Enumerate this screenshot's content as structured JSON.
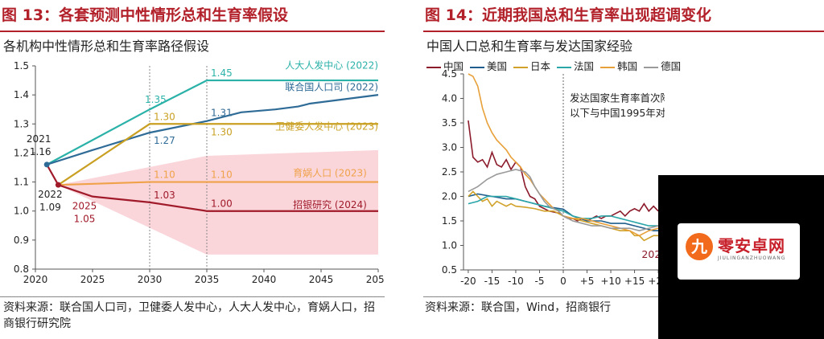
{
  "left": {
    "figure_title": "图 13：各套预测中性情形总和生育率假设",
    "subtitle": "各机构中性情形总和生育率路径假设",
    "source": "资料来源：联合国人口司，卫健委人发中心，人大人发中心，育娲人口，招商银行研究院"
  },
  "right": {
    "figure_title": "图 14：近期我国总和生育率出现超调变化",
    "subtitle": "中国人口总和生育率与发达国家经验",
    "source": "资料来源：联合国，Wind，招商银行",
    "annotation_line1": "发达国家生育率首次降至1.6",
    "annotation_line2": "以下与中国1995年对齐",
    "clipped_label": "202"
  },
  "watermark": {
    "badge": "九",
    "text": "零安卓网",
    "sub": "JIULINGANZHUOWANG"
  },
  "colors": {
    "title_red": "#b2202a",
    "china": "#8b1a2b",
    "usa": "#1f5e8c",
    "japan": "#d1a22a",
    "france": "#2aa5a8",
    "korea": "#e8a03a",
    "germany": "#9a9a9a",
    "renda": "#2ab1a8",
    "un": "#2f6b97",
    "weijian": "#c9a023",
    "yuwa": "#f0a24a",
    "cmb": "#a01a2a",
    "band": "#f8c8cf"
  },
  "chart_data": [
    {
      "type": "line",
      "title": "各机构中性情形总和生育率路径假设",
      "xlabel": "",
      "ylabel": "",
      "xlim": [
        2020,
        2050
      ],
      "ylim": [
        0.8,
        1.5
      ],
      "x_ticks": [
        "2020",
        "2025",
        "2030",
        "2035",
        "2040",
        "2045",
        "2050"
      ],
      "y_ticks": [
        "0.8",
        "0.9",
        "1.0",
        "1.1",
        "1.2",
        "1.3",
        "1.4",
        "1.5"
      ],
      "vlines": [
        2030,
        2035
      ],
      "band": {
        "x": [
          2022,
          2035,
          2050
        ],
        "upper": [
          1.09,
          1.19,
          1.21
        ],
        "lower": [
          1.09,
          0.85,
          0.85
        ]
      },
      "series": [
        {
          "name": "人大人发中心 (2022)",
          "color_key": "renda",
          "points": [
            [
              2021,
              1.16
            ],
            [
              2030,
              1.35
            ],
            [
              2035,
              1.45
            ],
            [
              2050,
              1.45
            ]
          ]
        },
        {
          "name": "联合国人口司 (2022)",
          "color_key": "un",
          "points": [
            [
              2021,
              1.16
            ],
            [
              2025,
              1.21
            ],
            [
              2030,
              1.27
            ],
            [
              2035,
              1.31
            ],
            [
              2038,
              1.34
            ],
            [
              2041,
              1.35
            ],
            [
              2043,
              1.36
            ],
            [
              2044,
              1.37
            ],
            [
              2046,
              1.38
            ],
            [
              2048,
              1.39
            ],
            [
              2050,
              1.4
            ]
          ]
        },
        {
          "name": "卫健委人发中心 (2023)",
          "color_key": "weijian",
          "points": [
            [
              2022,
              1.09
            ],
            [
              2030,
              1.3
            ],
            [
              2035,
              1.3
            ],
            [
              2050,
              1.3
            ]
          ]
        },
        {
          "name": "育娲人口 (2023)",
          "color_key": "yuwa",
          "points": [
            [
              2022,
              1.09
            ],
            [
              2030,
              1.1
            ],
            [
              2035,
              1.1
            ],
            [
              2050,
              1.1
            ]
          ]
        },
        {
          "name": "招银研究 (2024)",
          "color_key": "cmb",
          "points": [
            [
              2021,
              1.16
            ],
            [
              2022,
              1.09
            ],
            [
              2025,
              1.05
            ],
            [
              2030,
              1.03
            ],
            [
              2035,
              1.0
            ],
            [
              2050,
              1.0
            ]
          ]
        }
      ],
      "labels": [
        {
          "text": "2021",
          "x": 2021,
          "y": 1.16,
          "pos": "above2"
        },
        {
          "text": "1.16",
          "x": 2021,
          "y": 1.16,
          "pos": "above1"
        },
        {
          "text": "2022",
          "x": 2022,
          "y": 1.09,
          "pos": "below1"
        },
        {
          "text": "1.09",
          "x": 2022,
          "y": 1.09,
          "pos": "below2"
        },
        {
          "text": "2025",
          "x": 2025,
          "y": 1.05,
          "pos": "below1",
          "color_key": "cmb"
        },
        {
          "text": "1.05",
          "x": 2025,
          "y": 1.05,
          "pos": "below2",
          "color_key": "cmb"
        },
        {
          "text": "1.35",
          "x": 2030,
          "y": 1.35,
          "pos": "leftabove",
          "color_key": "renda"
        },
        {
          "text": "1.30",
          "x": 2030,
          "y": 1.3,
          "pos": "right",
          "color_key": "weijian"
        },
        {
          "text": "1.27",
          "x": 2030,
          "y": 1.27,
          "pos": "rightbelow",
          "color_key": "un"
        },
        {
          "text": "1.10",
          "x": 2030,
          "y": 1.1,
          "pos": "right",
          "color_key": "yuwa"
        },
        {
          "text": "1.03",
          "x": 2030,
          "y": 1.03,
          "pos": "right",
          "color_key": "cmb"
        },
        {
          "text": "1.45",
          "x": 2035,
          "y": 1.45,
          "pos": "right",
          "color_key": "renda"
        },
        {
          "text": "1.31",
          "x": 2035,
          "y": 1.31,
          "pos": "rightabove",
          "color_key": "un"
        },
        {
          "text": "1.30",
          "x": 2035,
          "y": 1.3,
          "pos": "rightbelow",
          "color_key": "weijian"
        },
        {
          "text": "1.10",
          "x": 2035,
          "y": 1.1,
          "pos": "right",
          "color_key": "yuwa"
        },
        {
          "text": "1.00",
          "x": 2035,
          "y": 1.0,
          "pos": "right",
          "color_key": "cmb"
        }
      ],
      "series_labels": [
        {
          "text": "人大人发中心 (2022)",
          "x": 2050,
          "y": 1.49,
          "color_key": "renda"
        },
        {
          "text": "联合国人口司 (2022)",
          "x": 2050,
          "y": 1.415,
          "color_key": "un"
        },
        {
          "text": "卫健委人发中心 (2023)",
          "x": 2050,
          "y": 1.28,
          "color_key": "weijian"
        },
        {
          "text": "育娲人口 (2023)",
          "x": 2049,
          "y": 1.12,
          "color_key": "yuwa"
        },
        {
          "text": "招银研究 (2024)",
          "x": 2049,
          "y": 1.01,
          "color_key": "cmb"
        }
      ]
    },
    {
      "type": "line",
      "title": "中国人口总和生育率与发达国家经验",
      "xlabel": "",
      "ylabel": "",
      "xlim": [
        -21,
        21
      ],
      "ylim": [
        0.5,
        4.5
      ],
      "x_ticks": [
        "-20",
        "-15",
        "-10",
        "-5",
        "0",
        "+5",
        "+10",
        "+15",
        "+20"
      ],
      "y_ticks": [
        "0.5",
        "1.0",
        "1.5",
        "2.0",
        "2.5",
        "3.0",
        "3.5",
        "4.0",
        "4.5"
      ],
      "vline": 0,
      "legend": [
        "中国",
        "美国",
        "日本",
        "法国",
        "韩国",
        "德国"
      ],
      "series": [
        {
          "name": "中国",
          "color_key": "china",
          "points": [
            [
              -20,
              3.55
            ],
            [
              -19,
              2.8
            ],
            [
              -18,
              2.7
            ],
            [
              -17,
              2.75
            ],
            [
              -16,
              2.6
            ],
            [
              -15,
              2.9
            ],
            [
              -14,
              2.65
            ],
            [
              -13,
              2.6
            ],
            [
              -12,
              2.75
            ],
            [
              -11,
              2.55
            ],
            [
              -10,
              2.7
            ],
            [
              -9,
              2.6
            ],
            [
              -8,
              2.2
            ],
            [
              -7,
              2.0
            ],
            [
              -6,
              1.95
            ],
            [
              -5,
              1.8
            ],
            [
              -4,
              1.75
            ],
            [
              -3,
              1.7
            ],
            [
              -2,
              1.68
            ],
            [
              -1,
              1.66
            ],
            [
              0,
              1.6
            ],
            [
              1,
              1.55
            ],
            [
              2,
              1.55
            ],
            [
              3,
              1.5
            ],
            [
              4,
              1.55
            ],
            [
              5,
              1.5
            ],
            [
              6,
              1.55
            ],
            [
              7,
              1.6
            ],
            [
              8,
              1.55
            ],
            [
              9,
              1.6
            ],
            [
              10,
              1.6
            ],
            [
              11,
              1.65
            ],
            [
              12,
              1.7
            ],
            [
              13,
              1.6
            ],
            [
              14,
              1.7
            ],
            [
              15,
              1.75
            ],
            [
              16,
              1.7
            ],
            [
              17,
              1.85
            ],
            [
              18,
              1.7
            ],
            [
              19,
              1.8
            ],
            [
              20,
              1.7
            ]
          ]
        },
        {
          "name": "美国",
          "color_key": "usa",
          "points": [
            [
              -20,
              2.0
            ],
            [
              -18,
              2.05
            ],
            [
              -15,
              2.0
            ],
            [
              -12,
              1.95
            ],
            [
              -10,
              1.95
            ],
            [
              -8,
              1.9
            ],
            [
              -6,
              1.85
            ],
            [
              -4,
              1.8
            ],
            [
              -2,
              1.77
            ],
            [
              0,
              1.74
            ],
            [
              2,
              1.6
            ],
            [
              5,
              1.5
            ],
            [
              8,
              1.5
            ],
            [
              10,
              1.45
            ],
            [
              13,
              1.45
            ],
            [
              15,
              1.4
            ],
            [
              17,
              1.35
            ],
            [
              19,
              1.3
            ],
            [
              20,
              1.3
            ]
          ]
        },
        {
          "name": "日本",
          "color_key": "japan",
          "points": [
            [
              -20,
              2.0
            ],
            [
              -19,
              2.1
            ],
            [
              -18,
              2.0
            ],
            [
              -17,
              1.9
            ],
            [
              -16,
              1.95
            ],
            [
              -15,
              1.8
            ],
            [
              -14,
              1.9
            ],
            [
              -13,
              1.85
            ],
            [
              -12,
              1.8
            ],
            [
              -11,
              1.85
            ],
            [
              -10,
              1.8
            ],
            [
              -8,
              1.78
            ],
            [
              -6,
              1.75
            ],
            [
              -4,
              1.7
            ],
            [
              -2,
              1.7
            ],
            [
              0,
              1.6
            ],
            [
              2,
              1.55
            ],
            [
              4,
              1.5
            ],
            [
              6,
              1.45
            ],
            [
              8,
              1.4
            ],
            [
              10,
              1.35
            ],
            [
              12,
              1.3
            ],
            [
              14,
              1.3
            ],
            [
              15,
              1.2
            ],
            [
              16,
              1.2
            ],
            [
              17,
              1.1
            ],
            [
              18,
              1.15
            ],
            [
              19,
              1.2
            ],
            [
              20,
              1.2
            ]
          ]
        },
        {
          "name": "法国",
          "color_key": "france",
          "points": [
            [
              -20,
              1.85
            ],
            [
              -18,
              1.9
            ],
            [
              -16,
              2.0
            ],
            [
              -14,
              2.0
            ],
            [
              -12,
              2.0
            ],
            [
              -10,
              1.95
            ],
            [
              -8,
              1.9
            ],
            [
              -6,
              1.85
            ],
            [
              -4,
              1.8
            ],
            [
              -2,
              1.75
            ],
            [
              0,
              1.7
            ],
            [
              2,
              1.6
            ],
            [
              4,
              1.55
            ],
            [
              6,
              1.55
            ],
            [
              8,
              1.6
            ],
            [
              10,
              1.6
            ],
            [
              12,
              1.55
            ],
            [
              14,
              1.5
            ],
            [
              16,
              1.45
            ],
            [
              18,
              1.4
            ],
            [
              20,
              1.4
            ]
          ]
        },
        {
          "name": "韩国",
          "color_key": "korea",
          "points": [
            [
              -20,
              4.5
            ],
            [
              -19,
              4.45
            ],
            [
              -18,
              4.25
            ],
            [
              -17,
              3.8
            ],
            [
              -16,
              3.5
            ],
            [
              -15,
              3.3
            ],
            [
              -14,
              3.15
            ],
            [
              -13,
              3.05
            ],
            [
              -12,
              2.95
            ],
            [
              -11,
              2.8
            ],
            [
              -10,
              2.7
            ],
            [
              -9,
              2.6
            ],
            [
              -8,
              2.45
            ],
            [
              -7,
              2.35
            ],
            [
              -6,
              2.2
            ],
            [
              -5,
              2.05
            ],
            [
              -4,
              1.95
            ],
            [
              -3,
              1.85
            ],
            [
              -2,
              1.75
            ],
            [
              -1,
              1.7
            ],
            [
              0,
              1.6
            ],
            [
              2,
              1.55
            ],
            [
              4,
              1.55
            ],
            [
              6,
              1.5
            ],
            [
              8,
              1.45
            ],
            [
              10,
              1.4
            ],
            [
              12,
              1.35
            ],
            [
              14,
              1.3
            ],
            [
              16,
              1.2
            ],
            [
              18,
              1.3
            ],
            [
              20,
              1.35
            ]
          ]
        },
        {
          "name": "德国",
          "color_key": "germany",
          "points": [
            [
              -20,
              2.1
            ],
            [
              -18,
              2.2
            ],
            [
              -16,
              2.35
            ],
            [
              -14,
              2.45
            ],
            [
              -12,
              2.5
            ],
            [
              -10,
              2.55
            ],
            [
              -8,
              2.5
            ],
            [
              -7,
              2.4
            ],
            [
              -6,
              2.2
            ],
            [
              -5,
              2.05
            ],
            [
              -4,
              1.9
            ],
            [
              -3,
              1.8
            ],
            [
              -2,
              1.75
            ],
            [
              -1,
              1.7
            ],
            [
              0,
              1.6
            ],
            [
              2,
              1.5
            ],
            [
              4,
              1.45
            ],
            [
              6,
              1.4
            ],
            [
              8,
              1.4
            ],
            [
              10,
              1.35
            ],
            [
              12,
              1.35
            ],
            [
              14,
              1.35
            ],
            [
              16,
              1.3
            ],
            [
              18,
              1.35
            ],
            [
              20,
              1.4
            ]
          ]
        }
      ]
    }
  ]
}
